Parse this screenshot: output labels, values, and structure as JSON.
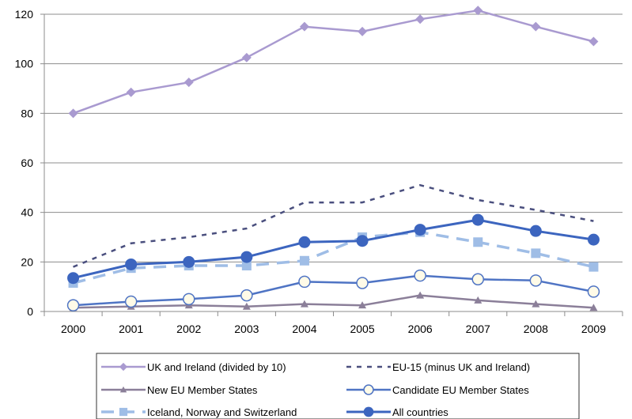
{
  "chart_data": {
    "type": "line",
    "title": "",
    "xlabel": "",
    "ylabel": "",
    "categories": [
      "2000",
      "2001",
      "2002",
      "2003",
      "2004",
      "2005",
      "2006",
      "2007",
      "2008",
      "2009"
    ],
    "ylim": [
      0,
      120
    ],
    "yticks": [
      0,
      20,
      40,
      60,
      80,
      100,
      120
    ],
    "grid": "horizontal",
    "legend_position": "bottom",
    "series": [
      {
        "name": "UK and Ireland (divided by 10)",
        "values": [
          80,
          88.5,
          92.5,
          102.5,
          115,
          113,
          118,
          121.5,
          115,
          109
        ],
        "color": "#a99ad0",
        "line": "solid",
        "marker": "diamond"
      },
      {
        "name": "EU-15 (minus UK and Ireland)",
        "values": [
          18,
          27.5,
          30,
          33.5,
          44,
          44,
          51,
          45,
          41,
          36.5
        ],
        "color": "#4a4f7e",
        "line": "dotted",
        "marker": "none"
      },
      {
        "name": "New EU Member States",
        "values": [
          1.5,
          2,
          2.5,
          2,
          3,
          2.5,
          6.5,
          4.5,
          3,
          1.5
        ],
        "color": "#8b7f99",
        "line": "solid",
        "marker": "triangle"
      },
      {
        "name": "Candidate EU Member States",
        "values": [
          2.5,
          4,
          5,
          6.5,
          12,
          11.5,
          14.5,
          13,
          12.5,
          8
        ],
        "color": "#4f74c4",
        "line": "solid",
        "marker": "hollow-circle"
      },
      {
        "name": "Iceland, Norway and Switzerland",
        "values": [
          11.5,
          17.5,
          18.5,
          18.5,
          20.5,
          30,
          32,
          28,
          23.5,
          18
        ],
        "color": "#9fbde6",
        "line": "dashed",
        "marker": "square"
      },
      {
        "name": "All countries",
        "values": [
          13.5,
          19,
          20,
          22,
          28,
          28.5,
          33,
          37,
          32.5,
          29
        ],
        "color": "#3c65bf",
        "line": "solid",
        "marker": "filled-circle"
      }
    ]
  }
}
